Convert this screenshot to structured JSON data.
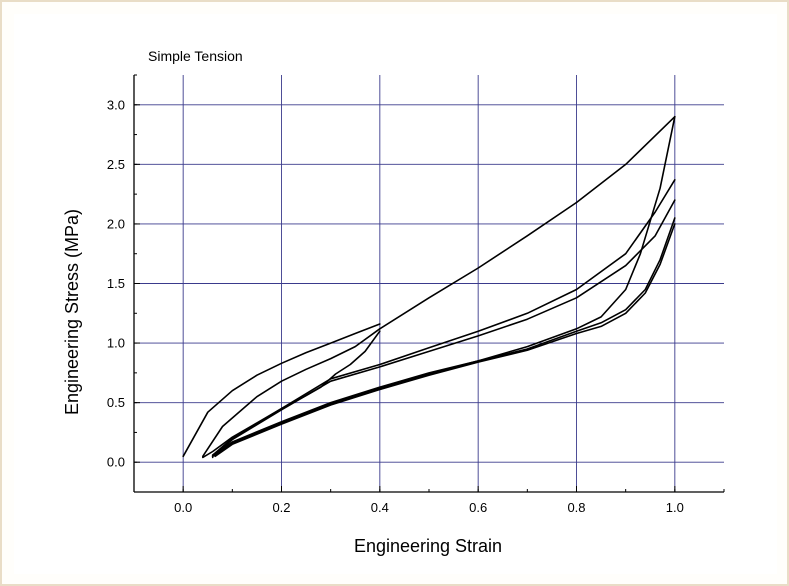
{
  "colors": {
    "frame": "#e9ddc7",
    "grid": "#3a3a8c",
    "curve": "#000000"
  },
  "chart_data": {
    "type": "line",
    "title": "Simple Tension",
    "xlabel": "Engineering Strain",
    "ylabel": "Engineering Stress (MPa)",
    "xlim": [
      -0.1,
      1.1
    ],
    "ylim": [
      -0.25,
      3.25
    ],
    "xticks": [
      "0.0",
      "0.2",
      "0.4",
      "0.6",
      "0.8",
      "1.0"
    ],
    "yticks": [
      "0.0",
      "0.5",
      "1.0",
      "1.5",
      "2.0",
      "2.5",
      "3.0"
    ],
    "grid": true,
    "series": [
      {
        "x": [
          0,
          0.05,
          0.1,
          0.15,
          0.2,
          0.25,
          0.3,
          0.35,
          0.4
        ],
        "y": [
          0.05,
          0.42,
          0.6,
          0.73,
          0.83,
          0.92,
          1.0,
          1.08,
          1.16
        ]
      },
      {
        "x": [
          0.4,
          0.5,
          0.6,
          0.7,
          0.8,
          0.9,
          1.0
        ],
        "y": [
          1.12,
          1.38,
          1.63,
          1.9,
          2.18,
          2.5,
          2.9
        ]
      },
      {
        "x": [
          1.0,
          0.97,
          0.93,
          0.9,
          0.85,
          0.8,
          0.7,
          0.6,
          0.5,
          0.4,
          0.3,
          0.2,
          0.1,
          0.06,
          0.06
        ],
        "y": [
          2.9,
          2.3,
          1.75,
          1.45,
          1.22,
          1.12,
          0.97,
          0.85,
          0.75,
          0.63,
          0.5,
          0.34,
          0.17,
          0.06,
          0.04
        ]
      },
      {
        "x": [
          0.04,
          0.08,
          0.15,
          0.2,
          0.25,
          0.3,
          0.35,
          0.4
        ],
        "y": [
          0.05,
          0.3,
          0.55,
          0.68,
          0.78,
          0.87,
          0.97,
          1.12
        ]
      },
      {
        "x": [
          0.4,
          0.37,
          0.34,
          0.31,
          0.28,
          0.25,
          0.2,
          0.15,
          0.1,
          0.06,
          0.04
        ],
        "y": [
          1.1,
          0.93,
          0.82,
          0.74,
          0.63,
          0.56,
          0.45,
          0.33,
          0.21,
          0.09,
          0.04
        ]
      },
      {
        "x": [
          0.06,
          0.1,
          0.2,
          0.3,
          0.4,
          0.5,
          0.6,
          0.7,
          0.8,
          0.9,
          0.96,
          1.0
        ],
        "y": [
          0.06,
          0.2,
          0.45,
          0.7,
          0.82,
          0.96,
          1.1,
          1.25,
          1.45,
          1.75,
          2.1,
          2.37
        ]
      },
      {
        "x": [
          0.06,
          0.1,
          0.2,
          0.3,
          0.4,
          0.5,
          0.6,
          0.7,
          0.8,
          0.9,
          0.96,
          1.0
        ],
        "y": [
          0.05,
          0.19,
          0.44,
          0.68,
          0.8,
          0.93,
          1.06,
          1.2,
          1.38,
          1.65,
          1.9,
          2.2
        ]
      },
      {
        "x": [
          1.0,
          0.97,
          0.94,
          0.9,
          0.85,
          0.8,
          0.7,
          0.6,
          0.5,
          0.4,
          0.3,
          0.2,
          0.1,
          0.06
        ],
        "y": [
          2.05,
          1.7,
          1.45,
          1.28,
          1.17,
          1.1,
          0.95,
          0.85,
          0.74,
          0.62,
          0.49,
          0.33,
          0.16,
          0.05
        ]
      },
      {
        "x": [
          1.0,
          0.97,
          0.94,
          0.9,
          0.85,
          0.8,
          0.7,
          0.6,
          0.5,
          0.4,
          0.3,
          0.2,
          0.1,
          0.065
        ],
        "y": [
          2.0,
          1.66,
          1.42,
          1.25,
          1.14,
          1.08,
          0.94,
          0.84,
          0.73,
          0.61,
          0.48,
          0.32,
          0.15,
          0.05
        ]
      }
    ]
  }
}
